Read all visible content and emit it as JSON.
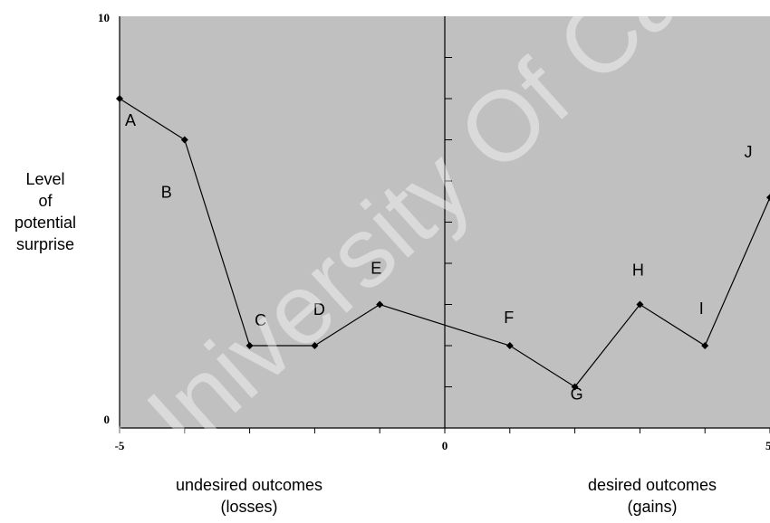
{
  "chart_data": {
    "type": "line",
    "title": "",
    "ylabel_lines": [
      "Level",
      "of",
      "potential",
      "surprise"
    ],
    "x_regions": [
      {
        "lines": [
          "undesired outcomes",
          "(losses)"
        ]
      },
      {
        "lines": [
          "desired outcomes",
          "(gains)"
        ]
      }
    ],
    "xlim": [
      -5,
      5
    ],
    "ylim": [
      0,
      10
    ],
    "x_tick_labels": [
      "-5",
      "0",
      "5"
    ],
    "y_tick_labels": [
      "0",
      "10"
    ],
    "points": [
      {
        "label": "A",
        "x": -5,
        "y": 8.0
      },
      {
        "label": "B",
        "x": -4,
        "y": 7.0
      },
      {
        "label": "C",
        "x": -3,
        "y": 2.0
      },
      {
        "label": "D",
        "x": -2,
        "y": 2.0
      },
      {
        "label": "E",
        "x": -1,
        "y": 3.0
      },
      {
        "label": "F",
        "x": 1,
        "y": 2.0
      },
      {
        "label": "G",
        "x": 2,
        "y": 1.0
      },
      {
        "label": "H",
        "x": 3,
        "y": 3.0
      },
      {
        "label": "I",
        "x": 4,
        "y": 2.0
      },
      {
        "label": "J",
        "x": 5,
        "y": 5.6
      }
    ],
    "plot_background": "#c0c0c0",
    "line_color": "#000000",
    "watermark": "University Of Cape Town"
  }
}
